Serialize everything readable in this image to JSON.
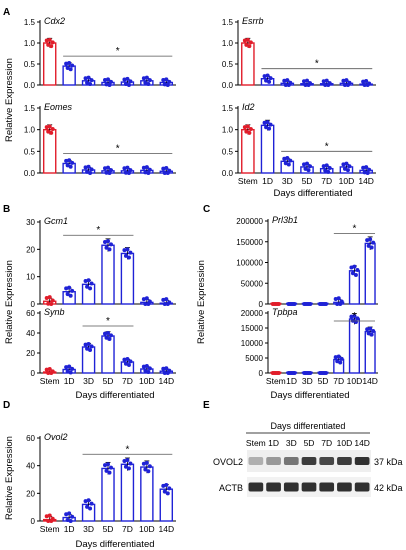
{
  "categories": [
    "Stem",
    "1D",
    "3D",
    "5D",
    "7D",
    "10D",
    "14D"
  ],
  "days_label": "Days differentiated",
  "ylabel": "Relative Expression",
  "sig_mark": "*",
  "colors": {
    "stem": "#e11d2a",
    "diff": "#1f22d6",
    "axis": "#000000",
    "blot_bg": "#f2f2f2"
  },
  "panels": [
    {
      "letter": "A"
    },
    {
      "letter": "B"
    },
    {
      "letter": "C"
    },
    {
      "letter": "D"
    },
    {
      "letter": "E"
    }
  ],
  "chart_data": [
    {
      "type": "bar",
      "panel": "A",
      "gene": "Cdx2",
      "categories": [
        "Stem",
        "1D",
        "3D",
        "5D",
        "7D",
        "10D",
        "14D"
      ],
      "values": [
        1.0,
        0.45,
        0.1,
        0.06,
        0.07,
        0.1,
        0.06
      ],
      "ylim": [
        0,
        1.5
      ],
      "yticks": [
        0.0,
        0.5,
        1.0,
        1.5
      ],
      "ytick_labels": [
        "0.0",
        "0.5",
        "1.0",
        "1.5"
      ],
      "sig_range": [
        "1D",
        "14D"
      ]
    },
    {
      "type": "bar",
      "panel": "A",
      "gene": "Esrrb",
      "categories": [
        "Stem",
        "1D",
        "3D",
        "5D",
        "7D",
        "10D",
        "14D"
      ],
      "values": [
        1.0,
        0.15,
        0.04,
        0.03,
        0.03,
        0.04,
        0.02
      ],
      "ylim": [
        0,
        1.5
      ],
      "yticks": [
        0.0,
        0.5,
        1.0,
        1.5
      ],
      "ytick_labels": [
        "0.0",
        "0.5",
        "1.0",
        "1.5"
      ],
      "sig_range": [
        "1D",
        "14D"
      ]
    },
    {
      "type": "bar",
      "panel": "A",
      "gene": "Eomes",
      "categories": [
        "Stem",
        "1D",
        "3D",
        "5D",
        "7D",
        "10D",
        "14D"
      ],
      "values": [
        1.0,
        0.22,
        0.07,
        0.05,
        0.05,
        0.06,
        0.04
      ],
      "ylim": [
        0,
        1.5
      ],
      "yticks": [
        0.0,
        0.5,
        1.0,
        1.5
      ],
      "ytick_labels": [
        "0.0",
        "0.5",
        "1.0",
        "1.5"
      ],
      "sig_range": [
        "1D",
        "14D"
      ]
    },
    {
      "type": "bar",
      "panel": "A",
      "gene": "Id2",
      "categories": [
        "Stem",
        "1D",
        "3D",
        "5D",
        "7D",
        "10D",
        "14D"
      ],
      "values": [
        1.0,
        1.1,
        0.27,
        0.14,
        0.1,
        0.14,
        0.06
      ],
      "ylim": [
        0,
        1.5
      ],
      "yticks": [
        0.0,
        0.5,
        1.0,
        1.5
      ],
      "ytick_labels": [
        "0.0",
        "0.5",
        "1.0",
        "1.5"
      ],
      "sig_range": [
        "3D",
        "14D"
      ]
    },
    {
      "type": "bar",
      "panel": "B",
      "gene": "Gcm1",
      "categories": [
        "Stem",
        "1D",
        "3D",
        "5D",
        "7D",
        "10D",
        "14D"
      ],
      "values": [
        1,
        4.5,
        7.2,
        21.5,
        18.5,
        0.6,
        0.3
      ],
      "ylim": [
        0,
        30
      ],
      "yticks": [
        0,
        10,
        20,
        30
      ],
      "ytick_labels": [
        "0",
        "10",
        "20",
        "30"
      ],
      "sig_range": [
        "1D",
        "7D"
      ]
    },
    {
      "type": "bar",
      "panel": "B",
      "gene": "Synb",
      "categories": [
        "Stem",
        "1D",
        "3D",
        "5D",
        "7D",
        "10D",
        "14D"
      ],
      "values": [
        1,
        3.5,
        26,
        37,
        11,
        4,
        1.8
      ],
      "ylim": [
        0,
        60
      ],
      "yticks": [
        0,
        20,
        40,
        60
      ],
      "ytick_labels": [
        "0",
        "20",
        "40",
        "60"
      ],
      "sig_range": [
        "3D",
        "7D"
      ]
    },
    {
      "type": "bar",
      "panel": "C",
      "gene": "Prl3b1",
      "categories": [
        "Stem",
        "1D",
        "3D",
        "5D",
        "7D",
        "10D",
        "14D"
      ],
      "values": [
        0,
        0,
        0,
        0,
        4000,
        80000,
        146000
      ],
      "ylim": [
        0,
        200000
      ],
      "yticks": [
        0,
        50000,
        100000,
        150000,
        200000
      ],
      "ytick_labels": [
        "0",
        "50000",
        "100000",
        "150000",
        "200000"
      ],
      "sig_range": [
        "7D",
        "14D"
      ]
    },
    {
      "type": "bar",
      "panel": "C",
      "gene": "Tpbpa",
      "categories": [
        "Stem",
        "1D",
        "3D",
        "5D",
        "7D",
        "10D",
        "14D"
      ],
      "values": [
        0,
        0,
        0,
        0,
        4500,
        18000,
        13800
      ],
      "ylim": [
        0,
        20000
      ],
      "yticks": [
        0,
        5000,
        10000,
        15000,
        20000
      ],
      "ytick_labels": [
        "0",
        "5000",
        "10000",
        "15000",
        "20000"
      ],
      "sig_range": [
        "7D",
        "14D"
      ]
    },
    {
      "type": "bar",
      "panel": "D",
      "gene": "Ovol2",
      "categories": [
        "Stem",
        "1D",
        "3D",
        "5D",
        "7D",
        "10D",
        "14D"
      ],
      "values": [
        1,
        2.5,
        12,
        38,
        41,
        39,
        23
      ],
      "ylim": [
        0,
        60
      ],
      "yticks": [
        0,
        20,
        40,
        60
      ],
      "ytick_labels": [
        "0",
        "20",
        "40",
        "60"
      ],
      "sig_range": [
        "3D",
        "14D"
      ]
    }
  ],
  "blot": {
    "header": "Days differentiated",
    "lanes": [
      "Stem",
      "1D",
      "3D",
      "5D",
      "7D",
      "10D",
      "14D"
    ],
    "rows": [
      {
        "label": "OVOL2",
        "size": "37 kDa",
        "intensity": [
          0.35,
          0.45,
          0.6,
          0.85,
          0.8,
          0.85,
          0.9
        ]
      },
      {
        "label": "ACTB",
        "size": "42 kDa",
        "intensity": [
          0.9,
          0.9,
          0.9,
          0.9,
          0.9,
          0.9,
          0.9
        ]
      }
    ]
  }
}
